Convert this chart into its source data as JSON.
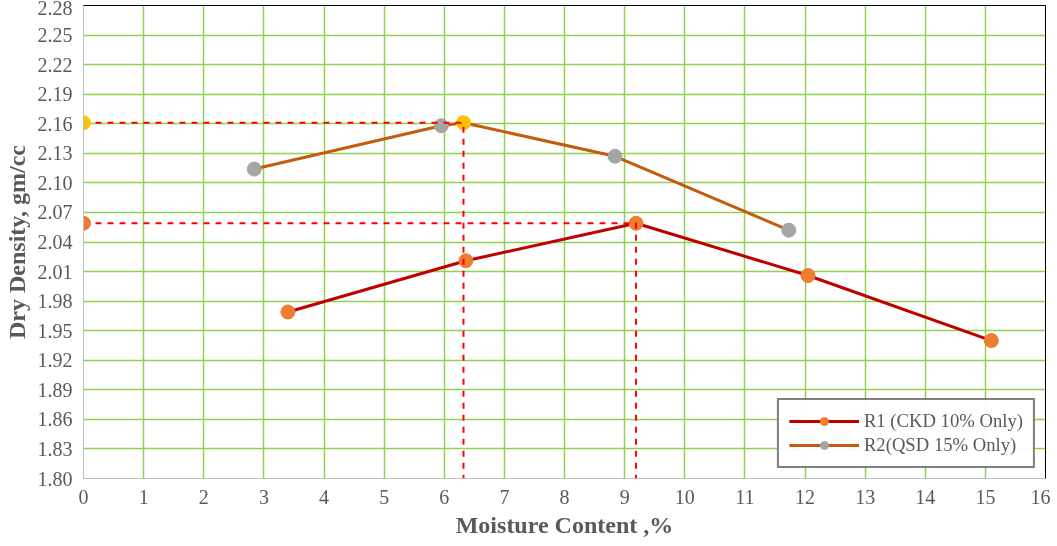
{
  "chart_data": {
    "type": "line",
    "xlabel": "Moisture Content ,%",
    "ylabel": "Dry Density, gm/cc",
    "xlim": [
      0,
      16
    ],
    "xticks": [
      0,
      1,
      2,
      3,
      4,
      5,
      6,
      7,
      8,
      9,
      10,
      11,
      12,
      13,
      14,
      15,
      16
    ],
    "ylim": [
      1.8,
      2.28
    ],
    "yticks": [
      {
        "value": 1.8,
        "label": "1.80"
      },
      1.83,
      1.86,
      1.89,
      1.92,
      1.95,
      1.98,
      2.01,
      2.04,
      2.07,
      {
        "value": 2.1,
        "label": "2.10"
      },
      2.13,
      2.16,
      2.19,
      2.22,
      2.25,
      2.28
    ],
    "grid": true,
    "legend": "bottom right",
    "marker": "circle",
    "line_style": "solid",
    "series": [
      {
        "name": "R1 (CKD 10% Only)",
        "color": "#c00000",
        "colors": [
          "#ed7d31",
          "#ed7d31",
          "#ed7d31",
          "#ed7d31",
          "#ed7d31"
        ],
        "x": [
          3.4,
          6.36,
          9.19,
          12.05,
          15.1
        ],
        "values": [
          1.969,
          2.021,
          2.059,
          2.006,
          1.94
        ]
      },
      {
        "name": "R2(QSD 15% Only)",
        "color": "#c55a11",
        "colors": [
          "#a5a5a5",
          "#a5a5a5",
          "#ffc000",
          "#a5a5a5",
          "#a5a5a5"
        ],
        "x": [
          2.84,
          5.95,
          6.32,
          8.84,
          11.73
        ],
        "values": [
          2.114,
          2.158,
          2.161,
          2.127,
          2.052
        ]
      },
      {
        "color": "#ff0000",
        "marker": "none",
        "line_style": "dashed",
        "x": [
          0,
          9.19,
          9.19
        ],
        "values": [
          2.059,
          2.059,
          1.8
        ]
      },
      {
        "color": "#ff0000",
        "marker": "none",
        "line_style": "dashed",
        "x": [
          0,
          6.32,
          6.32
        ],
        "values": [
          2.161,
          2.161,
          1.8
        ]
      },
      {
        "type": "scatter",
        "color": "#ffc000",
        "colors": [
          "#ffc000",
          "#ed7d31"
        ],
        "x": [
          0,
          0
        ],
        "values": [
          2.161,
          2.059
        ]
      }
    ]
  }
}
